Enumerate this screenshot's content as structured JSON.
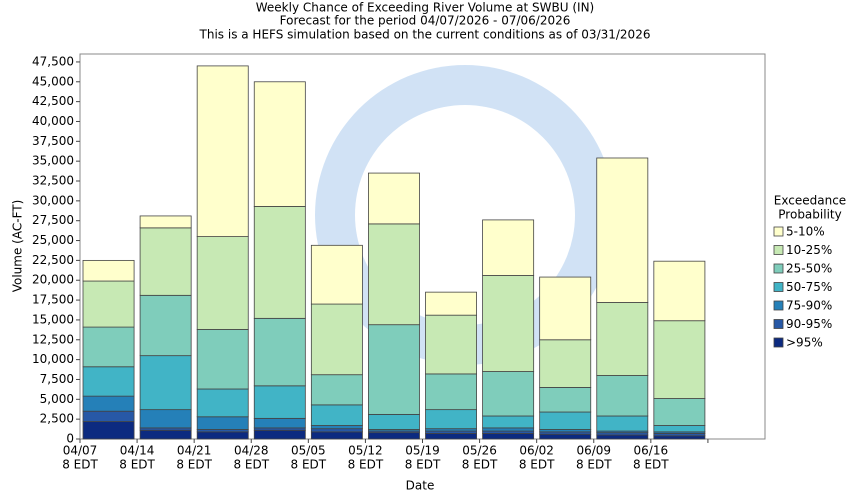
{
  "chart_data": {
    "type": "stacked-bar",
    "title": "Weekly Chance of Exceeding River Volume at SWBU (IN)",
    "subtitle": "Forecast for the period 04/07/2026 - 07/06/2026",
    "note": "This is a HEFS simulation based on the current conditions as of 03/31/2026",
    "x_label": "Date",
    "y_label": "Volume (AC-FT)",
    "categories": [
      "04/07",
      "04/14",
      "04/21",
      "04/28",
      "05/05",
      "05/12",
      "05/19",
      "05/26",
      "06/02",
      "06/09",
      "06/16",
      null
    ],
    "category_sublabel": "8 EDT",
    "legend_title": [
      "Exceedance",
      "Probability"
    ],
    "series": [
      {
        "name": ">95%",
        "color": "#0c2a80",
        "values": [
          2200,
          1100,
          900,
          1100,
          900,
          800,
          700,
          700,
          600,
          500,
          400,
          null
        ]
      },
      {
        "name": "90-95%",
        "color": "#2758a6",
        "values": [
          1300,
          300,
          300,
          300,
          400,
          200,
          300,
          300,
          300,
          300,
          300,
          null
        ]
      },
      {
        "name": "75-90%",
        "color": "#2580b8",
        "values": [
          1900,
          2300,
          1600,
          1200,
          400,
          200,
          300,
          400,
          300,
          200,
          200,
          null
        ]
      },
      {
        "name": "50-75%",
        "color": "#41b4c6",
        "values": [
          3700,
          6800,
          3500,
          4100,
          2600,
          1900,
          2400,
          1500,
          2200,
          1900,
          800,
          null
        ]
      },
      {
        "name": "25-50%",
        "color": "#7fcdbb",
        "values": [
          5000,
          7600,
          7500,
          8500,
          3800,
          11300,
          4500,
          5600,
          3100,
          5100,
          3400,
          null
        ]
      },
      {
        "name": "10-25%",
        "color": "#c7e9b4",
        "values": [
          5800,
          8500,
          11700,
          14100,
          8900,
          12700,
          7400,
          12100,
          6000,
          9200,
          9800,
          null
        ]
      },
      {
        "name": "5-10%",
        "color": "#ffffcc",
        "values": [
          2600,
          1500,
          21500,
          15700,
          7400,
          6400,
          2900,
          7000,
          7900,
          18200,
          7500,
          null
        ]
      }
    ],
    "ylim": [
      0,
      48500
    ],
    "yticks": [
      0,
      {
        "value": 2500,
        "label": "2,500"
      },
      {
        "value": 5000,
        "label": "5,000"
      },
      {
        "value": 7500,
        "label": "7,500"
      },
      {
        "value": 10000,
        "label": "10,000"
      },
      {
        "value": 12500,
        "label": "12,500"
      },
      {
        "value": 15000,
        "label": "15,000"
      },
      {
        "value": 17500,
        "label": "17,500"
      },
      {
        "value": 20000,
        "label": "20,000"
      },
      {
        "value": 22500,
        "label": "22,500"
      },
      {
        "value": 25000,
        "label": "25,000"
      },
      {
        "value": 27500,
        "label": "27,500"
      },
      {
        "value": 30000,
        "label": "30,000"
      },
      {
        "value": 32500,
        "label": "32,500"
      },
      {
        "value": 35000,
        "label": "35,000"
      },
      {
        "value": 37500,
        "label": "37,500"
      },
      {
        "value": 40000,
        "label": "40,000"
      },
      {
        "value": 42500,
        "label": "42,500"
      },
      {
        "value": 45000,
        "label": "45,000"
      },
      {
        "value": 47500,
        "label": "47,500"
      }
    ],
    "grid": false,
    "legend_position": "right"
  }
}
